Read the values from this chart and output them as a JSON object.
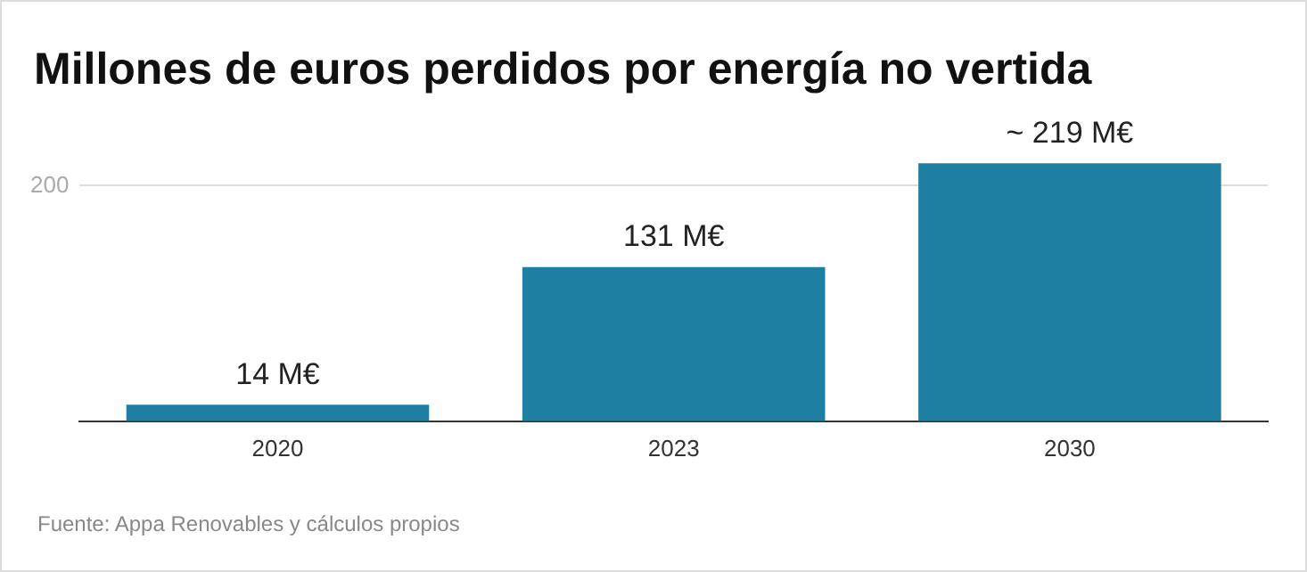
{
  "chart_data": {
    "type": "bar",
    "title": "Millones de euros perdidos por energía no vertida",
    "categories": [
      "2020",
      "2023",
      "2030"
    ],
    "values": [
      14,
      131,
      219
    ],
    "value_labels": [
      "14 M€",
      "131 M€",
      "~ 219 M€"
    ],
    "color": "#1f7fa3",
    "ylim": [
      0,
      220
    ],
    "yticks": [
      200
    ],
    "grid": "y",
    "annotations": [
      "Fuente: Appa Renovables y cálculos propios"
    ]
  }
}
